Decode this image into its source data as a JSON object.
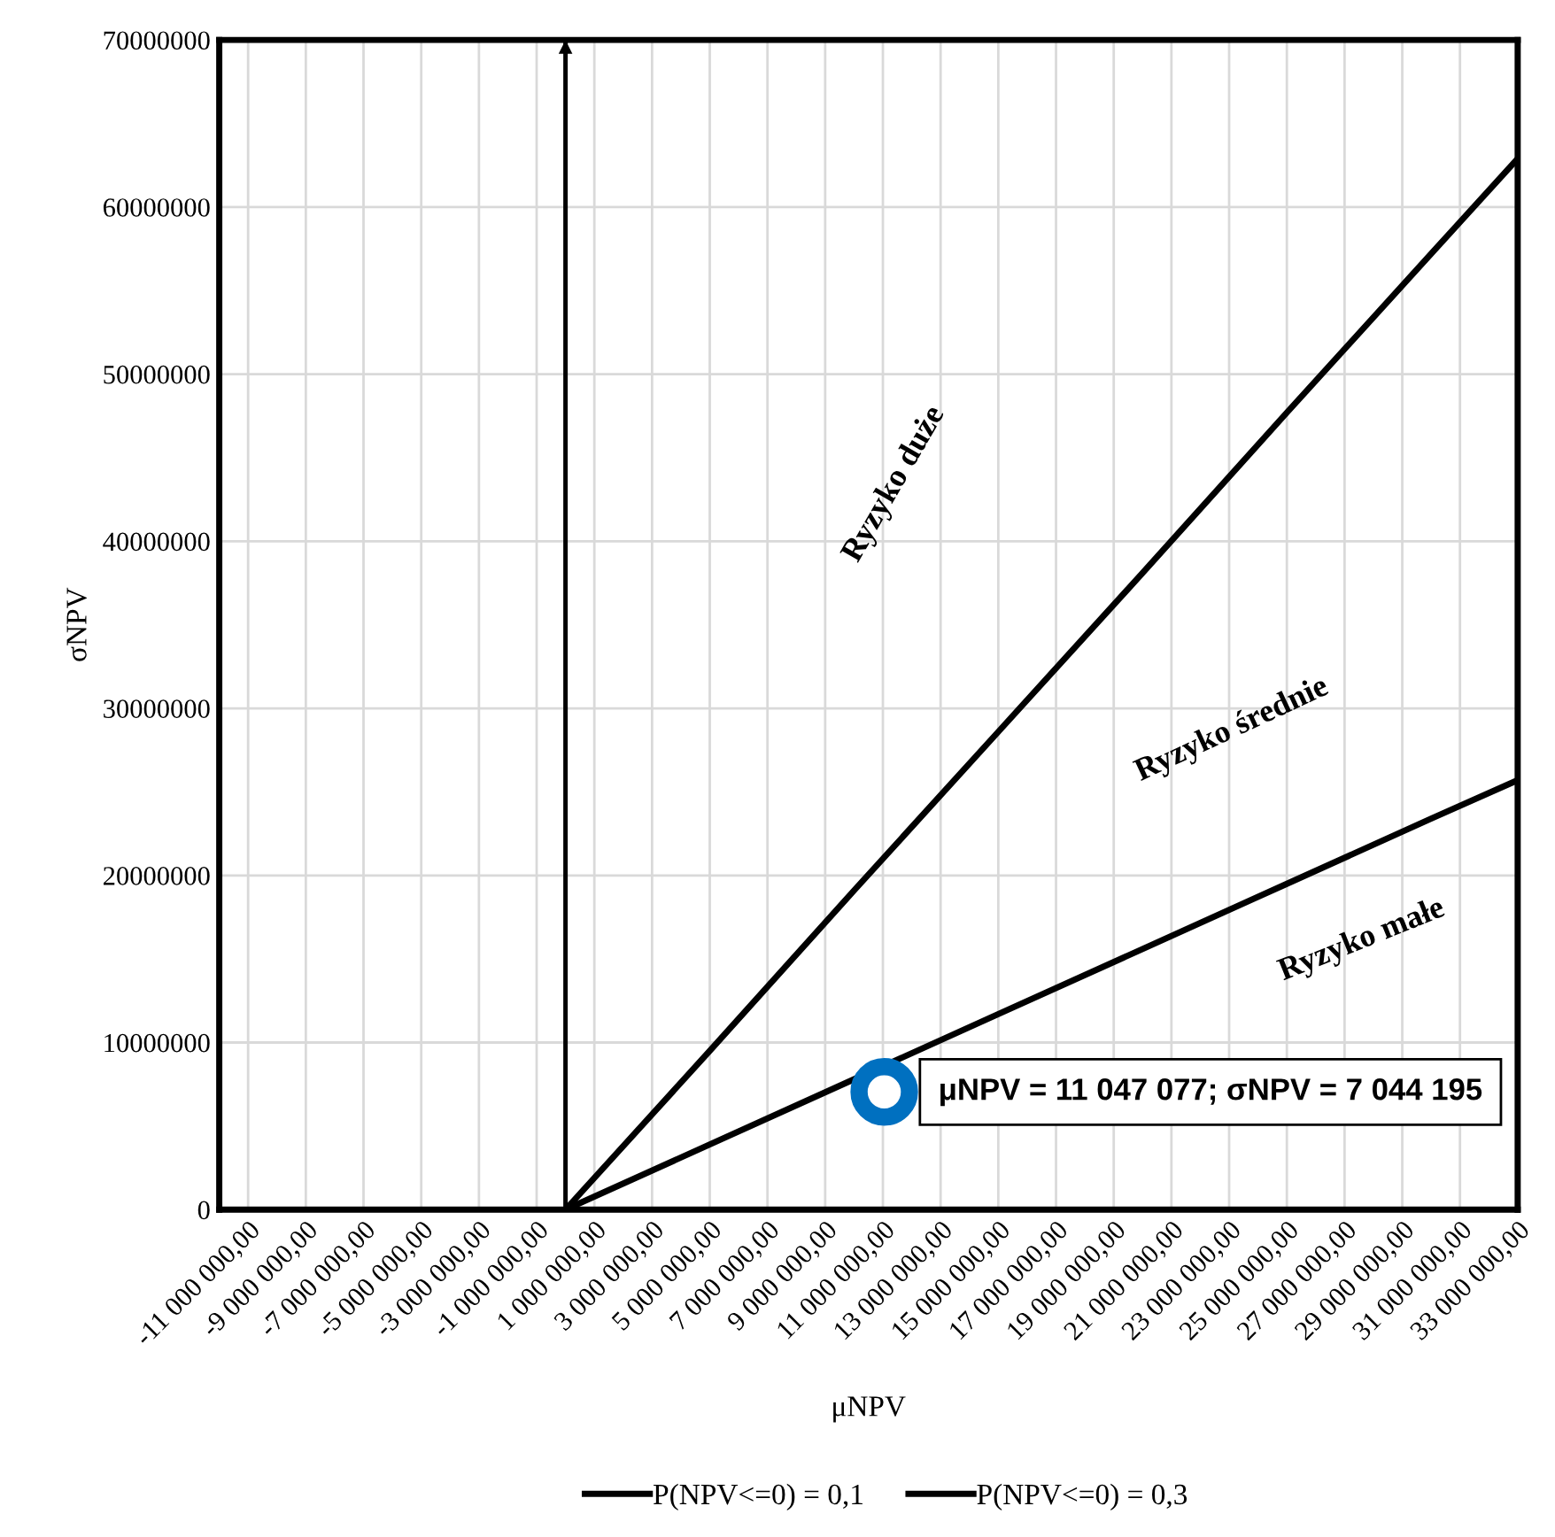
{
  "chart_data": {
    "type": "line",
    "xlabel": "μNPV",
    "ylabel": "σNPV",
    "xlim": [
      -12000000,
      33000000
    ],
    "ylim": [
      0,
      70000000
    ],
    "xticks": [
      {
        "value": -11000000,
        "label": "-11 000 000,00"
      },
      {
        "value": -9000000,
        "label": "-9 000 000,00"
      },
      {
        "value": -7000000,
        "label": "-7 000 000,00"
      },
      {
        "value": -5000000,
        "label": "-5 000 000,00"
      },
      {
        "value": -3000000,
        "label": "-3 000 000,00"
      },
      {
        "value": -1000000,
        "label": "-1 000 000,00"
      },
      {
        "value": 1000000,
        "label": "1 000 000,00"
      },
      {
        "value": 3000000,
        "label": "3 000 000,00"
      },
      {
        "value": 5000000,
        "label": "5 000 000,00"
      },
      {
        "value": 7000000,
        "label": "7 000 000,00"
      },
      {
        "value": 9000000,
        "label": "9 000 000,00"
      },
      {
        "value": 11000000,
        "label": "11 000 000,00"
      },
      {
        "value": 13000000,
        "label": "13 000 000,00"
      },
      {
        "value": 15000000,
        "label": "15 000 000,00"
      },
      {
        "value": 17000000,
        "label": "17 000 000,00"
      },
      {
        "value": 19000000,
        "label": "19 000 000,00"
      },
      {
        "value": 21000000,
        "label": "21 000 000,00"
      },
      {
        "value": 23000000,
        "label": "23 000 000,00"
      },
      {
        "value": 25000000,
        "label": "25 000 000,00"
      },
      {
        "value": 27000000,
        "label": "27 000 000,00"
      },
      {
        "value": 29000000,
        "label": "29 000 000,00"
      },
      {
        "value": 31000000,
        "label": "31 000 000,00"
      },
      {
        "value": 33000000,
        "label": "33 000 000,00"
      }
    ],
    "yticks": [
      0,
      10000000,
      20000000,
      30000000,
      40000000,
      50000000,
      60000000,
      70000000
    ],
    "grid": true,
    "legend": "bottom",
    "series": [
      {
        "name": "P(NPV<=0) = 0,1",
        "color": "#000000",
        "x": [
          0,
          5000000,
          10000000,
          15000000,
          20000000,
          25000000,
          30000000,
          33000000
        ],
        "values": [
          0,
          3900000,
          7800000,
          11700000,
          15600000,
          19500000,
          23400000,
          25700000
        ]
      },
      {
        "name": "P(NPV<=0) = 0,3",
        "color": "#000000",
        "x": [
          0,
          5000000,
          10000000,
          15000000,
          20000000,
          25000000,
          30000000,
          33000000
        ],
        "values": [
          0,
          9500000,
          19100000,
          28600000,
          38100000,
          47700000,
          57200000,
          62900000
        ]
      },
      {
        "type": "scatter",
        "color": "#0070c0",
        "x": [
          11047077
        ],
        "values": [
          7044195
        ]
      }
    ],
    "ref_lines": [
      {
        "axis": "x",
        "value": 0,
        "color": "#000000"
      }
    ],
    "annotations": [
      {
        "text": "μNPV = 11 047 077; σNPV = 7 044 195",
        "x": 11047077,
        "y": 7044195
      },
      "Ryzyko duże",
      "Ryzyko średnie",
      "Ryzyko małe"
    ]
  }
}
